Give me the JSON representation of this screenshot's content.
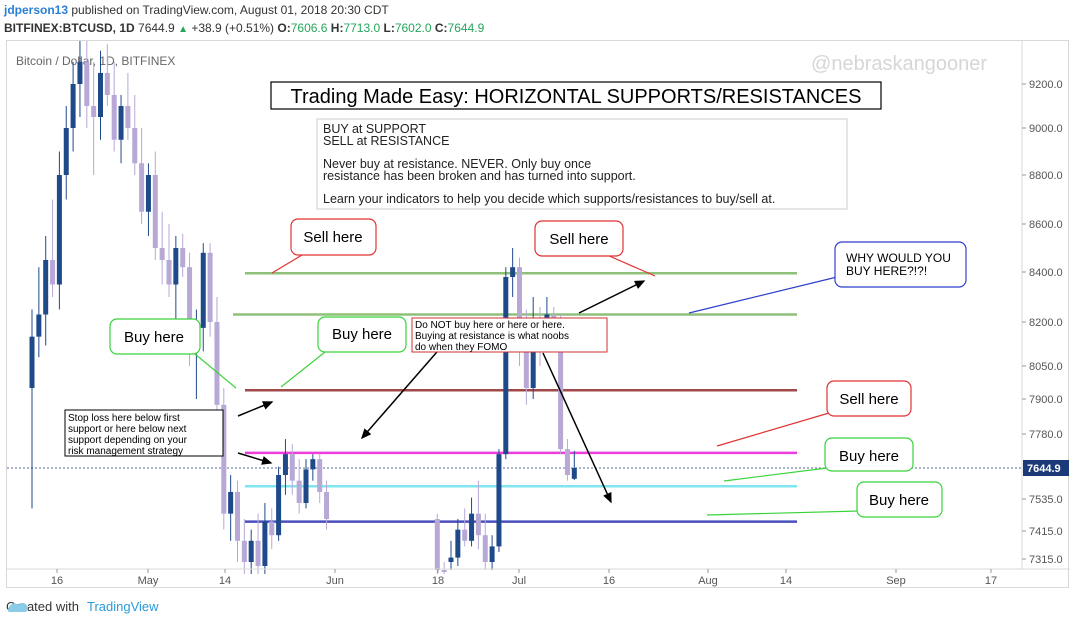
{
  "header": {
    "author": "jdperson13",
    "published": "published on TradingView.com, August 01, 2018 20:30 CDT",
    "symbol": "BITFINEX:BTCUSD, 1D",
    "price": "7644.9",
    "up_arrow": "▲",
    "change": "+38.9 (+0.51%)",
    "o_label": "O:",
    "o_value": "7606.6",
    "h_label": "H:",
    "h_value": "7713.0",
    "l_label": "L:",
    "l_value": "7602.0",
    "c_label": "C:",
    "c_value": "7644.9"
  },
  "chart_overlay": {
    "symbol_label": "Bitcoin / Dollar, 1D, BITFINEX",
    "watermark": "@nebraskangooner"
  },
  "chart_data": {
    "type": "candlestick",
    "title": "Trading Made Easy: HORIZONTAL SUPPORTS/RESISTANCES",
    "ylim": [
      7240,
      9430
    ],
    "y_ticks": [
      "9200.0",
      "9000.0",
      "8800.0",
      "8600.0",
      "8400.0",
      "8200.0",
      "8050.0",
      "7900.0",
      "7780.0",
      "7644.9",
      "7535.0",
      "7415.0",
      "7315.0"
    ],
    "x_ticks": [
      "16",
      "May",
      "14",
      "Jun",
      "18",
      "Jul",
      "16",
      "Aug",
      "14",
      "Sep",
      "17"
    ],
    "last_price": "7644.9",
    "horizontal_levels": [
      {
        "price": 8395,
        "color": "#8fc07a"
      },
      {
        "price": 8230,
        "color": "#8fc07a"
      },
      {
        "price": 7940,
        "color": "#a14848"
      },
      {
        "price": 7705,
        "color": "#ee3ddb"
      },
      {
        "price": 7580,
        "color": "#7fe6ee"
      },
      {
        "price": 7450,
        "color": "#4a4fbe"
      }
    ],
    "candles": [
      {
        "o": 7950,
        "h": 8250,
        "l": 7500,
        "c": 8150
      },
      {
        "o": 8150,
        "h": 8420,
        "l": 8080,
        "c": 8230
      },
      {
        "o": 8230,
        "h": 8550,
        "l": 8120,
        "c": 8450
      },
      {
        "o": 8450,
        "h": 8700,
        "l": 8300,
        "c": 8350
      },
      {
        "o": 8350,
        "h": 8900,
        "l": 8250,
        "c": 8800
      },
      {
        "o": 8800,
        "h": 9100,
        "l": 8700,
        "c": 9000
      },
      {
        "o": 9000,
        "h": 9300,
        "l": 8900,
        "c": 9200
      },
      {
        "o": 9200,
        "h": 9430,
        "l": 9050,
        "c": 9300
      },
      {
        "o": 9300,
        "h": 9430,
        "l": 9000,
        "c": 9100
      },
      {
        "o": 9100,
        "h": 9300,
        "l": 8800,
        "c": 9050
      },
      {
        "o": 9050,
        "h": 9350,
        "l": 8950,
        "c": 9250
      },
      {
        "o": 9250,
        "h": 9380,
        "l": 9100,
        "c": 9150
      },
      {
        "o": 9150,
        "h": 9300,
        "l": 8900,
        "c": 8950
      },
      {
        "o": 8950,
        "h": 9150,
        "l": 8850,
        "c": 9100
      },
      {
        "o": 9100,
        "h": 9250,
        "l": 8950,
        "c": 9000
      },
      {
        "o": 9000,
        "h": 9150,
        "l": 8800,
        "c": 8850
      },
      {
        "o": 8850,
        "h": 9000,
        "l": 8600,
        "c": 8650
      },
      {
        "o": 8650,
        "h": 8850,
        "l": 8550,
        "c": 8800
      },
      {
        "o": 8800,
        "h": 8900,
        "l": 8450,
        "c": 8500
      },
      {
        "o": 8500,
        "h": 8650,
        "l": 8350,
        "c": 8450
      },
      {
        "o": 8450,
        "h": 8600,
        "l": 8300,
        "c": 8350
      },
      {
        "o": 8350,
        "h": 8550,
        "l": 8200,
        "c": 8500
      },
      {
        "o": 8500,
        "h": 8560,
        "l": 8380,
        "c": 8420
      },
      {
        "o": 8420,
        "h": 8480,
        "l": 8050,
        "c": 8100
      },
      {
        "o": 8100,
        "h": 8250,
        "l": 7900,
        "c": 8180
      },
      {
        "o": 8180,
        "h": 8520,
        "l": 8100,
        "c": 8480
      },
      {
        "o": 8480,
        "h": 8520,
        "l": 8150,
        "c": 8200
      },
      {
        "o": 8200,
        "h": 8300,
        "l": 7850,
        "c": 7880
      },
      {
        "o": 7880,
        "h": 7950,
        "l": 7420,
        "c": 7480
      },
      {
        "o": 7480,
        "h": 7620,
        "l": 7380,
        "c": 7560
      },
      {
        "o": 7560,
        "h": 7600,
        "l": 7300,
        "c": 7380
      },
      {
        "o": 7380,
        "h": 7460,
        "l": 7240,
        "c": 7300
      },
      {
        "o": 7300,
        "h": 7420,
        "l": 7240,
        "c": 7380
      },
      {
        "o": 7380,
        "h": 7480,
        "l": 7240,
        "c": 7280
      },
      {
        "o": 7280,
        "h": 7520,
        "l": 7240,
        "c": 7450
      },
      {
        "o": 7450,
        "h": 7500,
        "l": 7350,
        "c": 7400
      },
      {
        "o": 7400,
        "h": 7650,
        "l": 7380,
        "c": 7620
      },
      {
        "o": 7620,
        "h": 7760,
        "l": 7550,
        "c": 7700
      },
      {
        "o": 7700,
        "h": 7740,
        "l": 7550,
        "c": 7600
      },
      {
        "o": 7600,
        "h": 7680,
        "l": 7480,
        "c": 7520
      },
      {
        "o": 7520,
        "h": 7680,
        "l": 7500,
        "c": 7640
      },
      {
        "o": 7640,
        "h": 7700,
        "l": 7600,
        "c": 7680
      },
      {
        "o": 7680,
        "h": 7700,
        "l": 7520,
        "c": 7560
      },
      {
        "o": 7560,
        "h": 7600,
        "l": 7420,
        "c": 7460
      },
      {
        "o": 7460,
        "h": 7480,
        "l": 7240,
        "c": 7260
      },
      {
        "o": 7260,
        "h": 7300,
        "l": 7240,
        "c": 7250
      },
      {
        "o": 7300,
        "h": 7380,
        "l": 7260,
        "c": 7320
      },
      {
        "o": 7320,
        "h": 7460,
        "l": 7280,
        "c": 7420
      },
      {
        "o": 7420,
        "h": 7500,
        "l": 7360,
        "c": 7380
      },
      {
        "o": 7380,
        "h": 7540,
        "l": 7360,
        "c": 7480
      },
      {
        "o": 7480,
        "h": 7600,
        "l": 7350,
        "c": 7400
      },
      {
        "o": 7400,
        "h": 7480,
        "l": 7260,
        "c": 7300
      },
      {
        "o": 7300,
        "h": 7400,
        "l": 7260,
        "c": 7360
      },
      {
        "o": 7360,
        "h": 7720,
        "l": 7340,
        "c": 7700
      },
      {
        "o": 7700,
        "h": 8420,
        "l": 7680,
        "c": 8380
      },
      {
        "o": 8380,
        "h": 8500,
        "l": 8300,
        "c": 8420
      },
      {
        "o": 8420,
        "h": 8460,
        "l": 8050,
        "c": 8100
      },
      {
        "o": 8100,
        "h": 8250,
        "l": 7880,
        "c": 7950
      },
      {
        "o": 7950,
        "h": 8300,
        "l": 7900,
        "c": 8200
      },
      {
        "o": 8200,
        "h": 8260,
        "l": 8050,
        "c": 8150
      },
      {
        "o": 8150,
        "h": 8300,
        "l": 8100,
        "c": 8230
      },
      {
        "o": 8230,
        "h": 8260,
        "l": 8120,
        "c": 8180
      },
      {
        "o": 8180,
        "h": 8230,
        "l": 7700,
        "c": 7720
      },
      {
        "o": 7720,
        "h": 7760,
        "l": 7600,
        "c": 7620
      },
      {
        "o": 7606.6,
        "h": 7713,
        "l": 7602,
        "c": 7644.9
      }
    ]
  },
  "annotations": {
    "info_lines": [
      "BUY at SUPPORT",
      "SELL at RESISTANCE",
      "Never buy at resistance. NEVER. Only buy once",
      "resistance has been broken and has turned into support.",
      "Learn your indicators to help you decide which supports/resistances to buy/sell at."
    ],
    "sell_here_1": "Sell here",
    "sell_here_2": "Sell here",
    "sell_here_3": "Sell here",
    "buy_here_1": "Buy here",
    "buy_here_2": "Buy here",
    "buy_here_3": "Buy here",
    "buy_here_4": "Buy here",
    "why_buy_lines": [
      "WHY WOULD YOU",
      "BUY HERE?!?!"
    ],
    "donot_lines": [
      "Do NOT buy here or here or here.",
      "Buying at resistance is what noobs",
      "do when they FOMO"
    ],
    "stoploss_lines": [
      "Stop loss here below first",
      "support or here below next",
      "support depending on your",
      "risk management strategy"
    ]
  },
  "footer": {
    "created_with": "Created with",
    "brand": "TradingView"
  }
}
